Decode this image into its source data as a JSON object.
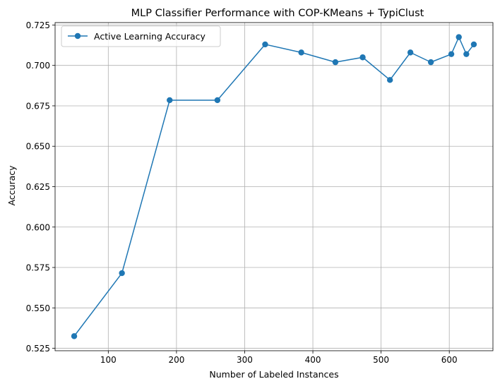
{
  "chart_data": {
    "type": "line",
    "title": "MLP Classifier Performance with COP-KMeans + TypiClust",
    "xlabel": "Number of Labeled Instances",
    "ylabel": "Accuracy",
    "xlim": [
      22,
      664
    ],
    "ylim": [
      0.5235,
      0.7265
    ],
    "xticks": [
      100,
      200,
      300,
      400,
      500,
      600
    ],
    "xtick_labels": [
      "100",
      "200",
      "300",
      "400",
      "500",
      "600"
    ],
    "yticks": [
      0.525,
      0.55,
      0.575,
      0.6,
      0.625,
      0.65,
      0.675,
      0.7,
      0.725
    ],
    "ytick_labels": [
      "0.525",
      "0.550",
      "0.575",
      "0.600",
      "0.625",
      "0.650",
      "0.675",
      "0.700",
      "0.725"
    ],
    "grid": true,
    "legend_position": "upper-left",
    "color": "#1f77b4",
    "series": [
      {
        "name": "Active Learning Accuracy",
        "marker": "circle",
        "x": [
          50,
          120,
          190,
          260,
          330,
          383,
          433,
          473,
          513,
          543,
          573,
          603,
          614,
          625,
          636
        ],
        "y": [
          0.5325,
          0.5715,
          0.6785,
          0.6785,
          0.713,
          0.708,
          0.702,
          0.705,
          0.691,
          0.708,
          0.702,
          0.707,
          0.7175,
          0.707,
          0.713
        ]
      }
    ]
  }
}
